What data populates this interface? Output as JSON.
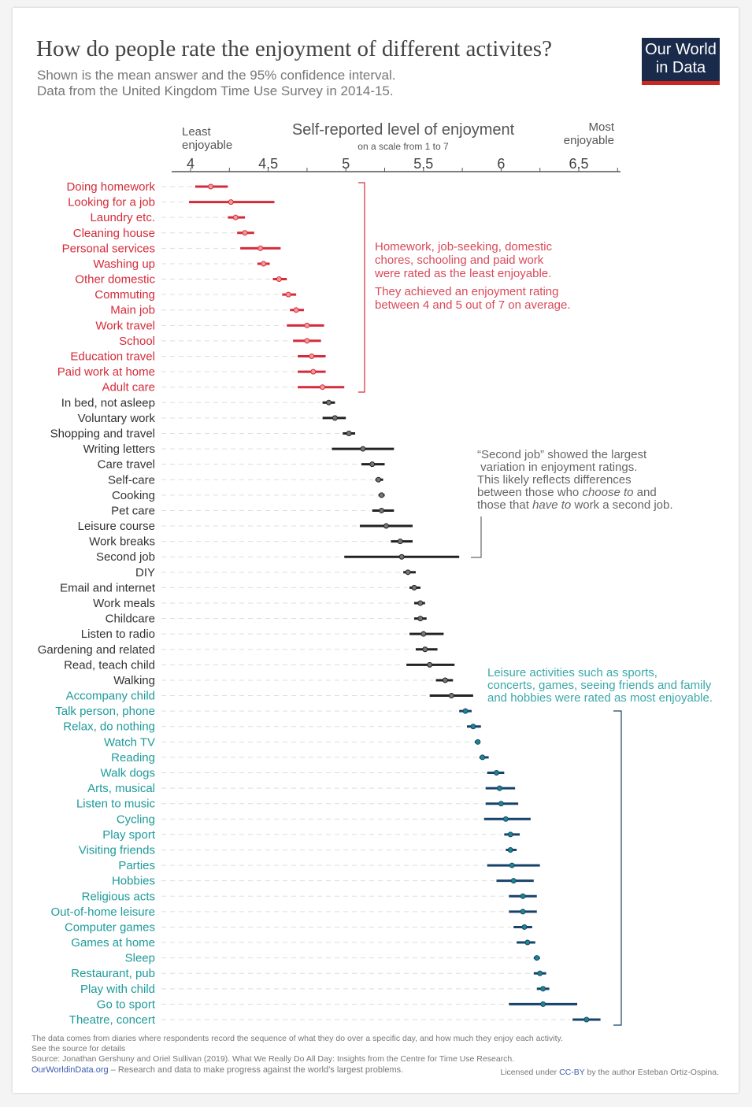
{
  "header": {
    "title": "How do people rate the enjoyment of different activites?",
    "subtitle_line1": "Shown is the mean answer and the 95% confidence interval.",
    "subtitle_line2": "Data from the United Kingdom Time Use Survey in 2014-15.",
    "logo_line1": "Our World",
    "logo_line2": "in Data"
  },
  "colors": {
    "red": "#d42b3a",
    "black": "#222222",
    "teal_label": "#1f9a9a",
    "teal_bar": "#17436b",
    "teal_dot": "#1a8a8a"
  },
  "annotations": {
    "red": [
      "Homework, job-seeking, domestic",
      "chores, schooling and paid work",
      "were rated as the least enjoyable.",
      "They achieved an enjoyment rating",
      "between 4 and 5 out of 7 on average."
    ],
    "gray": {
      "line1": "“Second job” showed the largest",
      "line2": " variation in enjoyment ratings.",
      "line3": "This likely reflects differences",
      "line4a": "between those who ",
      "line4b": "choose to",
      "line4c": " and",
      "line5a": "those that ",
      "line5b": "have to",
      "line5c": " work a second job."
    },
    "teal": [
      "Leisure activities such as sports,",
      "concerts, games, seeing friends and family",
      "and hobbies were rated as most enjoyable."
    ]
  },
  "footer": {
    "note": "The data comes from diaries where respondents record the sequence of what they do over a specific day, and how much they enjoy each activity.",
    "see_source": "See the source for details",
    "source": "Source: Jonathan Gershuny and Oriel Sullivan (2019). What We Really Do All Day: Insights from the Centre for Time Use Research.",
    "owid_link": "OurWorldinData.org",
    "owid_tagline": " – Research and data to make progress against the world’s largest problems.",
    "license_prefix": "Licensed under ",
    "license_link": "CC-BY",
    "license_suffix": " by the author Esteban Ortiz-Ospina."
  },
  "chart_data": {
    "type": "dot-errorbar",
    "xlabel": "Self-reported level of enjoyment",
    "xlabel_sub": "on a scale from 1 to 7",
    "x_left_label": "Least enjoyable",
    "x_right_label": "Most enjoyable",
    "xlim": [
      3.9,
      6.77
    ],
    "xticks": [
      4,
      4.5,
      5,
      5.5,
      6,
      6.5
    ],
    "xtick_labels": [
      "4",
      "4.5",
      "5",
      "5.5",
      "6",
      "6.5"
    ],
    "grid": false,
    "items": [
      {
        "label": "Doing homework",
        "mean": 4.13,
        "low": 4.03,
        "high": 4.24,
        "group": "red"
      },
      {
        "label": "Looking for a job",
        "mean": 4.26,
        "low": 3.99,
        "high": 4.54,
        "group": "red"
      },
      {
        "label": "Laundry etc.",
        "mean": 4.29,
        "low": 4.24,
        "high": 4.35,
        "group": "red"
      },
      {
        "label": "Cleaning house",
        "mean": 4.35,
        "low": 4.3,
        "high": 4.41,
        "group": "red"
      },
      {
        "label": "Personal services",
        "mean": 4.45,
        "low": 4.32,
        "high": 4.58,
        "group": "red"
      },
      {
        "label": "Washing up",
        "mean": 4.47,
        "low": 4.43,
        "high": 4.51,
        "group": "red"
      },
      {
        "label": "Other domestic",
        "mean": 4.57,
        "low": 4.53,
        "high": 4.62,
        "group": "red"
      },
      {
        "label": "Commuting",
        "mean": 4.63,
        "low": 4.59,
        "high": 4.68,
        "group": "red"
      },
      {
        "label": "Main job",
        "mean": 4.68,
        "low": 4.64,
        "high": 4.73,
        "group": "red"
      },
      {
        "label": "Work travel",
        "mean": 4.75,
        "low": 4.62,
        "high": 4.86,
        "group": "red"
      },
      {
        "label": "School",
        "mean": 4.75,
        "low": 4.66,
        "high": 4.84,
        "group": "red"
      },
      {
        "label": "Education travel",
        "mean": 4.78,
        "low": 4.69,
        "high": 4.87,
        "group": "red"
      },
      {
        "label": "Paid work at home",
        "mean": 4.79,
        "low": 4.69,
        "high": 4.87,
        "group": "red"
      },
      {
        "label": "Adult care",
        "mean": 4.85,
        "low": 4.69,
        "high": 4.99,
        "group": "red"
      },
      {
        "label": "In bed, not asleep",
        "mean": 4.89,
        "low": 4.85,
        "high": 4.93,
        "group": "black"
      },
      {
        "label": "Voluntary work",
        "mean": 4.93,
        "low": 4.85,
        "high": 5.0,
        "group": "black"
      },
      {
        "label": "Shopping and travel",
        "mean": 5.02,
        "low": 4.98,
        "high": 5.06,
        "group": "black"
      },
      {
        "label": "Writing letters",
        "mean": 5.11,
        "low": 4.91,
        "high": 5.31,
        "group": "black"
      },
      {
        "label": "Care travel",
        "mean": 5.17,
        "low": 5.1,
        "high": 5.25,
        "group": "black"
      },
      {
        "label": "Self-care",
        "mean": 5.21,
        "low": 5.19,
        "high": 5.24,
        "group": "black"
      },
      {
        "label": "Cooking",
        "mean": 5.23,
        "low": 5.21,
        "high": 5.25,
        "group": "black"
      },
      {
        "label": "Pet care",
        "mean": 5.23,
        "low": 5.17,
        "high": 5.31,
        "group": "black"
      },
      {
        "label": "Leisure course",
        "mean": 5.26,
        "low": 5.09,
        "high": 5.43,
        "group": "black"
      },
      {
        "label": "Work breaks",
        "mean": 5.35,
        "low": 5.29,
        "high": 5.43,
        "group": "black"
      },
      {
        "label": "Second job",
        "mean": 5.36,
        "low": 4.99,
        "high": 5.73,
        "group": "black"
      },
      {
        "label": "DIY",
        "mean": 5.4,
        "low": 5.37,
        "high": 5.45,
        "group": "black"
      },
      {
        "label": "Email and internet",
        "mean": 5.44,
        "low": 5.41,
        "high": 5.48,
        "group": "black"
      },
      {
        "label": "Work meals",
        "mean": 5.48,
        "low": 5.44,
        "high": 5.51,
        "group": "black"
      },
      {
        "label": "Childcare",
        "mean": 5.48,
        "low": 5.44,
        "high": 5.52,
        "group": "black"
      },
      {
        "label": "Listen to radio",
        "mean": 5.5,
        "low": 5.41,
        "high": 5.63,
        "group": "black"
      },
      {
        "label": "Gardening and related",
        "mean": 5.51,
        "low": 5.45,
        "high": 5.59,
        "group": "black"
      },
      {
        "label": "Read, teach child",
        "mean": 5.54,
        "low": 5.39,
        "high": 5.7,
        "group": "black"
      },
      {
        "label": "Walking",
        "mean": 5.64,
        "low": 5.58,
        "high": 5.69,
        "group": "black"
      },
      {
        "label": "Accompany child",
        "mean": 5.68,
        "low": 5.54,
        "high": 5.82,
        "group": "black_teal"
      },
      {
        "label": "Talk person, phone",
        "mean": 5.77,
        "low": 5.73,
        "high": 5.81,
        "group": "teal"
      },
      {
        "label": "Relax, do nothing",
        "mean": 5.82,
        "low": 5.78,
        "high": 5.87,
        "group": "teal"
      },
      {
        "label": "Watch TV",
        "mean": 5.85,
        "low": 5.83,
        "high": 5.86,
        "group": "teal"
      },
      {
        "label": "Reading",
        "mean": 5.88,
        "low": 5.86,
        "high": 5.92,
        "group": "teal"
      },
      {
        "label": "Walk dogs",
        "mean": 5.97,
        "low": 5.91,
        "high": 6.02,
        "group": "teal"
      },
      {
        "label": "Arts, musical",
        "mean": 5.99,
        "low": 5.9,
        "high": 6.09,
        "group": "teal"
      },
      {
        "label": "Listen to music",
        "mean": 6.0,
        "low": 5.9,
        "high": 6.11,
        "group": "teal"
      },
      {
        "label": "Cycling",
        "mean": 6.03,
        "low": 5.89,
        "high": 6.19,
        "group": "teal"
      },
      {
        "label": "Play sport",
        "mean": 6.06,
        "low": 6.02,
        "high": 6.12,
        "group": "teal"
      },
      {
        "label": "Visiting friends",
        "mean": 6.06,
        "low": 6.03,
        "high": 6.1,
        "group": "teal"
      },
      {
        "label": "Parties",
        "mean": 6.07,
        "low": 5.91,
        "high": 6.25,
        "group": "teal"
      },
      {
        "label": "Hobbies",
        "mean": 6.08,
        "low": 5.97,
        "high": 6.21,
        "group": "teal"
      },
      {
        "label": "Religious acts",
        "mean": 6.14,
        "low": 6.05,
        "high": 6.23,
        "group": "teal"
      },
      {
        "label": "Out-of-home leisure",
        "mean": 6.14,
        "low": 6.05,
        "high": 6.23,
        "group": "teal"
      },
      {
        "label": "Computer games",
        "mean": 6.15,
        "low": 6.08,
        "high": 6.2,
        "group": "teal"
      },
      {
        "label": "Games at home",
        "mean": 6.17,
        "low": 6.1,
        "high": 6.22,
        "group": "teal"
      },
      {
        "label": "Sleep",
        "mean": 6.23,
        "low": 6.21,
        "high": 6.25,
        "group": "teal"
      },
      {
        "label": "Restaurant, pub",
        "mean": 6.25,
        "low": 6.21,
        "high": 6.29,
        "group": "teal"
      },
      {
        "label": "Play with child",
        "mean": 6.27,
        "low": 6.23,
        "high": 6.31,
        "group": "teal"
      },
      {
        "label": "Go to sport",
        "mean": 6.27,
        "low": 6.05,
        "high": 6.49,
        "group": "teal"
      },
      {
        "label": "Theatre, concert",
        "mean": 6.55,
        "low": 6.46,
        "high": 6.64,
        "group": "teal"
      }
    ]
  }
}
